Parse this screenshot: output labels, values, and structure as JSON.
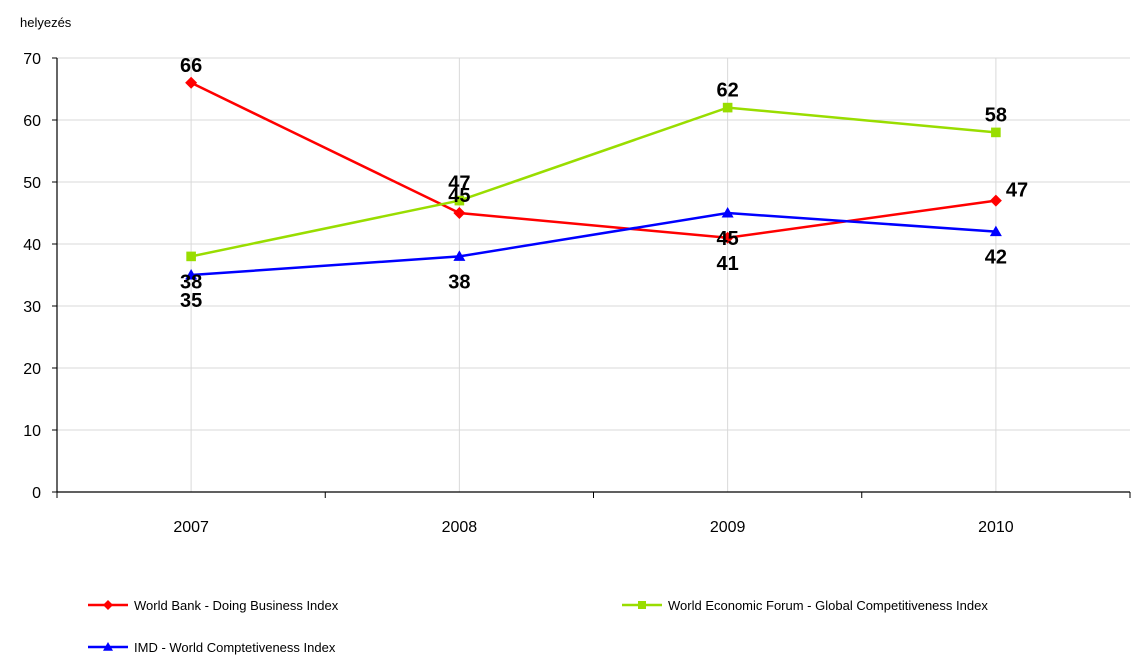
{
  "chart_data": {
    "type": "line",
    "title": "",
    "xlabel": "",
    "ylabel": "helyezés",
    "ylim": [
      0,
      70
    ],
    "y_ticks": [
      0,
      10,
      20,
      30,
      40,
      50,
      60,
      70
    ],
    "grid": true,
    "legend_position": "bottom",
    "x": [
      "2007",
      "2008",
      "2009",
      "2010"
    ],
    "series": [
      {
        "name": "World Bank - Doing Business Index",
        "color": "#ff0000",
        "marker": "diamond",
        "values": [
          66,
          45,
          41,
          47
        ]
      },
      {
        "name": "World Economic Forum - Global Competitiveness Index",
        "color": "#99dd00",
        "marker": "square",
        "values": [
          38,
          47,
          62,
          58
        ]
      },
      {
        "name": "IMD - World Comptetiveness Index",
        "color": "#0000ff",
        "marker": "triangle",
        "values": [
          35,
          38,
          45,
          42
        ]
      }
    ]
  }
}
